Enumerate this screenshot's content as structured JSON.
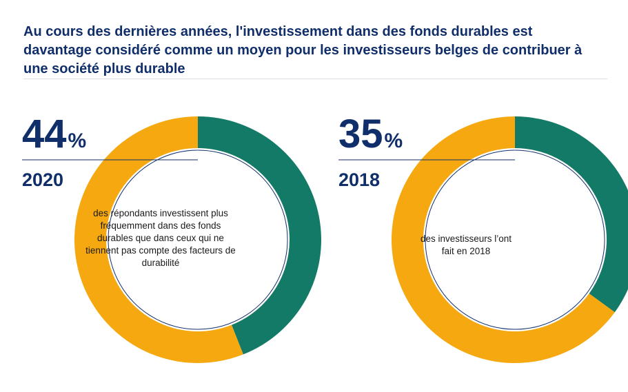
{
  "title": "Au cours des dernières années, l'investissement dans des fonds durables est davantage considéré comme un moyen pour les investisseurs belges de contribuer à une société plus durable",
  "colors": {
    "navy": "#102e6a",
    "teal": "#127a66",
    "gold": "#f5a80f",
    "text": "#1a1a1a"
  },
  "chart_data": [
    {
      "type": "pie",
      "variant": "donut",
      "value": 44,
      "unit": "%",
      "year": "2020",
      "description": "des répondants investissent plus fréquemment dans des fonds durables que dans ceux qui ne tiennent pas compte des facteurs de durabilité",
      "slices": [
        {
          "value": 44,
          "color": "#127a66"
        },
        {
          "value": 56,
          "color": "#f5a80f"
        }
      ]
    },
    {
      "type": "pie",
      "variant": "donut",
      "value": 35,
      "unit": "%",
      "year": "2018",
      "description": "des investisseurs l’ont fait en 2018",
      "slices": [
        {
          "value": 35,
          "color": "#127a66"
        },
        {
          "value": 65,
          "color": "#f5a80f"
        }
      ]
    }
  ]
}
